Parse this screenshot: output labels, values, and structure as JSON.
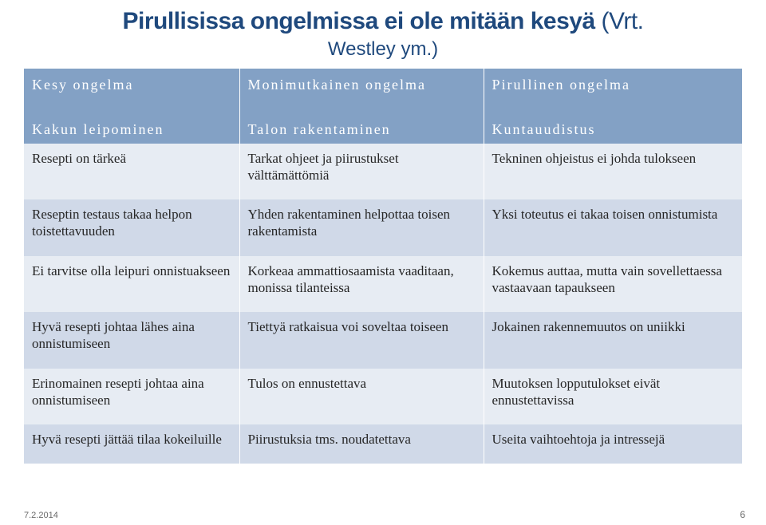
{
  "title_main": "Pirullisissa ongelmissa ei ole mitään kesyä",
  "title_sub": "(Vrt.",
  "title_line2": "Westley ym.)",
  "header_row": {
    "c1": "Kesy ongelma",
    "c2": "Monimutkainen ongelma",
    "c3": "Pirullinen ongelma"
  },
  "section_row": {
    "c1": "Kakun leipominen",
    "c2": "Talon rakentaminen",
    "c3": "Kuntauudistus"
  },
  "rows": [
    {
      "c1": "Resepti on tärkeä",
      "c2": "Tarkat ohjeet ja piirustukset välttämättömiä",
      "c3": "Tekninen ohjeistus ei johda tulokseen"
    },
    {
      "c1": "Reseptin testaus takaa helpon toistettavuuden",
      "c2": "Yhden rakentaminen helpottaa toisen rakentamista",
      "c3": "Yksi toteutus ei takaa toisen onnistumista"
    },
    {
      "c1": "Ei tarvitse olla leipuri onnistuakseen",
      "c2": "Korkeaa ammattiosaamista vaaditaan, monissa tilanteissa",
      "c3": "Kokemus auttaa, mutta vain sovellettaessa vastaavaan tapaukseen"
    },
    {
      "c1": "Hyvä resepti johtaa lähes aina onnistumiseen",
      "c2": "Tiettyä ratkaisua voi soveltaa toiseen",
      "c3": "Jokainen rakennemuutos on uniikki"
    },
    {
      "c1": "Erinomainen resepti johtaa aina onnistumiseen",
      "c2": "Tulos on ennustettava",
      "c3": "Muutoksen lopputulokset eivät ennustettavissa"
    },
    {
      "c1": "Hyvä resepti jättää tilaa kokeiluille",
      "c2": "Piirustuksia tms. noudatettava",
      "c3": "Useita vaihtoehtoja ja intressejä"
    }
  ],
  "colors": {
    "heading": "#1f497d",
    "header_bg": "#83a1c5",
    "band1_bg": "#e7ecf3",
    "band2_bg": "#d0d9e8",
    "text": "#262626"
  },
  "footer_date": "7.2.2014",
  "page_number": "6"
}
